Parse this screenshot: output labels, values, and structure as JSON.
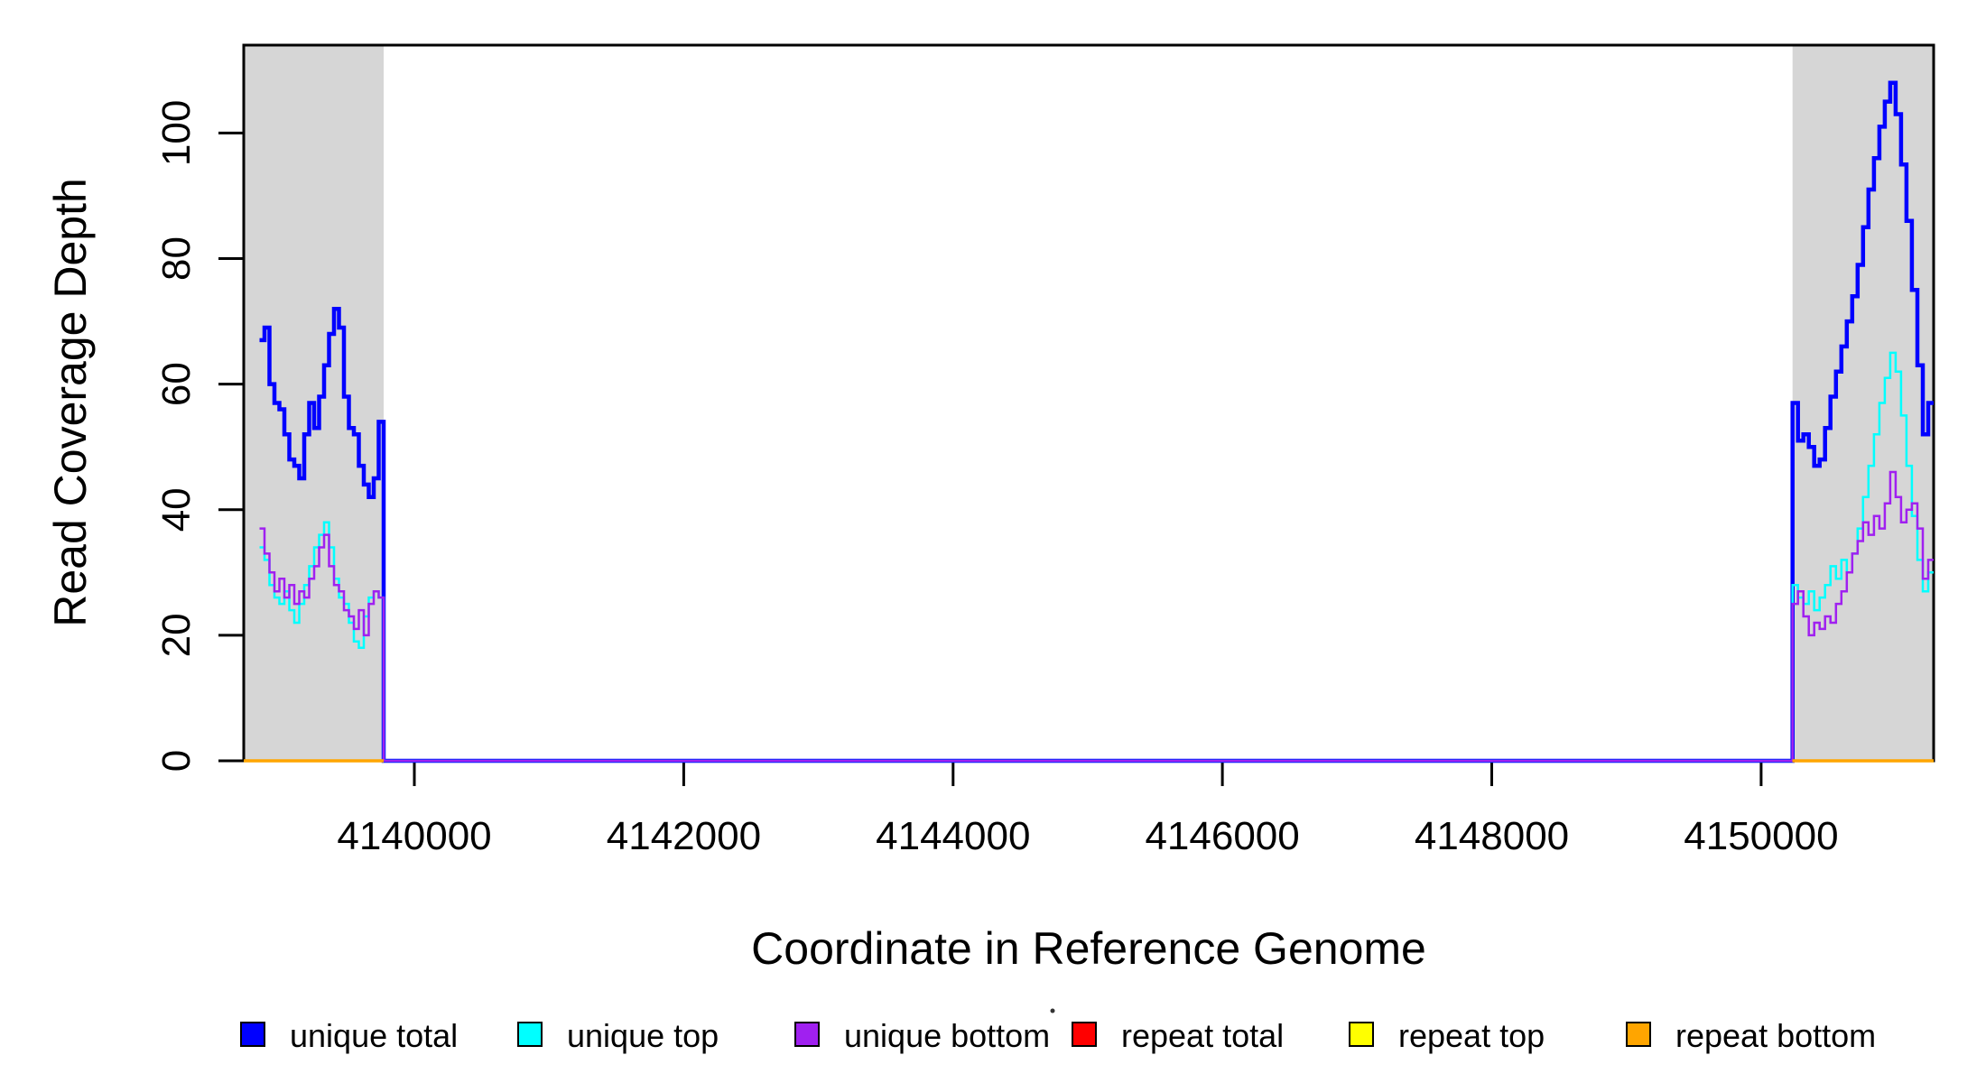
{
  "chart_data": {
    "type": "line",
    "subtype": "step-coverage-plot",
    "title": "",
    "xlabel": "Coordinate in Reference Genome",
    "ylabel": "Read Coverage Depth",
    "xlim": [
      4138733,
      4151281
    ],
    "ylim": [
      0,
      114
    ],
    "grid": false,
    "x_axis": {
      "ticks": [
        4140000,
        4142000,
        4144000,
        4146000,
        4148000,
        4150000
      ],
      "tick_labels": [
        "4140000",
        "4142000",
        "4144000",
        "4146000",
        "4148000",
        "4150000"
      ]
    },
    "y_axis": {
      "ticks": [
        0,
        20,
        40,
        60,
        80,
        100
      ],
      "tick_labels": [
        "0",
        "20",
        "40",
        "60",
        "80",
        "100"
      ]
    },
    "shade_color": "#d6d6d6",
    "shaded_regions": [
      {
        "x0": 4138733,
        "x1": 4139772
      },
      {
        "x0": 4150233,
        "x1": 4151281
      }
    ],
    "series": [
      {
        "name": "unique total",
        "color": "#0000ff",
        "stroke_width": 4.5,
        "bridge_at_zero": true,
        "segments": [
          {
            "x0": 4138850,
            "x1": 4139772,
            "values": [
              67,
              69,
              60,
              57,
              56,
              52,
              48,
              47,
              45,
              52,
              57,
              53,
              58,
              63,
              68,
              72,
              69,
              58,
              53,
              52,
              47,
              44,
              42,
              45,
              54
            ]
          },
          {
            "x0": 4150233,
            "x1": 4151281,
            "values": [
              57,
              51,
              52,
              50,
              47,
              48,
              53,
              58,
              62,
              66,
              70,
              74,
              79,
              85,
              91,
              96,
              101,
              105,
              108,
              103,
              95,
              86,
              75,
              63,
              52,
              57
            ]
          }
        ]
      },
      {
        "name": "unique top",
        "color": "#00ffff",
        "stroke_width": 2.5,
        "bridge_at_zero": true,
        "segments": [
          {
            "x0": 4138850,
            "x1": 4139772,
            "values": [
              34,
              32,
              28,
              26,
              25,
              27,
              24,
              22,
              25,
              28,
              31,
              34,
              36,
              38,
              34,
              29,
              26,
              25,
              22,
              19,
              18,
              23,
              26,
              27,
              26
            ]
          },
          {
            "x0": 4150233,
            "x1": 4151281,
            "values": [
              28,
              26,
              25,
              27,
              24,
              26,
              28,
              31,
              29,
              32,
              30,
              33,
              37,
              42,
              47,
              52,
              57,
              61,
              65,
              62,
              55,
              47,
              39,
              32,
              27,
              30
            ]
          }
        ]
      },
      {
        "name": "unique bottom",
        "color": "#a020f0",
        "stroke_width": 2.5,
        "bridge_at_zero": true,
        "segments": [
          {
            "x0": 4138850,
            "x1": 4139772,
            "values": [
              37,
              33,
              30,
              27,
              29,
              26,
              28,
              25,
              27,
              26,
              29,
              31,
              34,
              36,
              31,
              28,
              27,
              24,
              23,
              21,
              24,
              20,
              25,
              27,
              26
            ]
          },
          {
            "x0": 4150233,
            "x1": 4151281,
            "values": [
              25,
              27,
              23,
              20,
              22,
              21,
              23,
              22,
              25,
              27,
              30,
              33,
              35,
              38,
              36,
              39,
              37,
              41,
              46,
              42,
              38,
              40,
              41,
              37,
              29,
              32
            ]
          }
        ]
      },
      {
        "name": "repeat total",
        "color": "#ff0000",
        "stroke_width": 3,
        "bridge_at_zero": false,
        "segments": [
          {
            "x0": 4138733,
            "x1": 4139772,
            "values": [
              0
            ]
          },
          {
            "x0": 4150233,
            "x1": 4151281,
            "values": [
              0
            ]
          }
        ]
      },
      {
        "name": "repeat top",
        "color": "#ffff00",
        "stroke_width": 3,
        "bridge_at_zero": false,
        "segments": [
          {
            "x0": 4138733,
            "x1": 4139772,
            "values": [
              0
            ]
          },
          {
            "x0": 4150233,
            "x1": 4151281,
            "values": [
              0
            ]
          }
        ]
      },
      {
        "name": "repeat bottom",
        "color": "#ffa500",
        "stroke_width": 3.5,
        "bridge_at_zero": false,
        "segments": [
          {
            "x0": 4138733,
            "x1": 4139772,
            "values": [
              0
            ]
          },
          {
            "x0": 4150233,
            "x1": 4151281,
            "values": [
              0
            ]
          }
        ]
      }
    ],
    "legend": {
      "position": "bottom",
      "entries": [
        {
          "label": "unique total",
          "color": "#0000ff"
        },
        {
          "label": "unique top",
          "color": "#00ffff"
        },
        {
          "label": "unique bottom",
          "color": "#a020f0"
        },
        {
          "label": "repeat total",
          "color": "#ff0000"
        },
        {
          "label": "repeat top",
          "color": "#ffff00"
        },
        {
          "label": "repeat bottom",
          "color": "#ffa500"
        }
      ]
    }
  }
}
